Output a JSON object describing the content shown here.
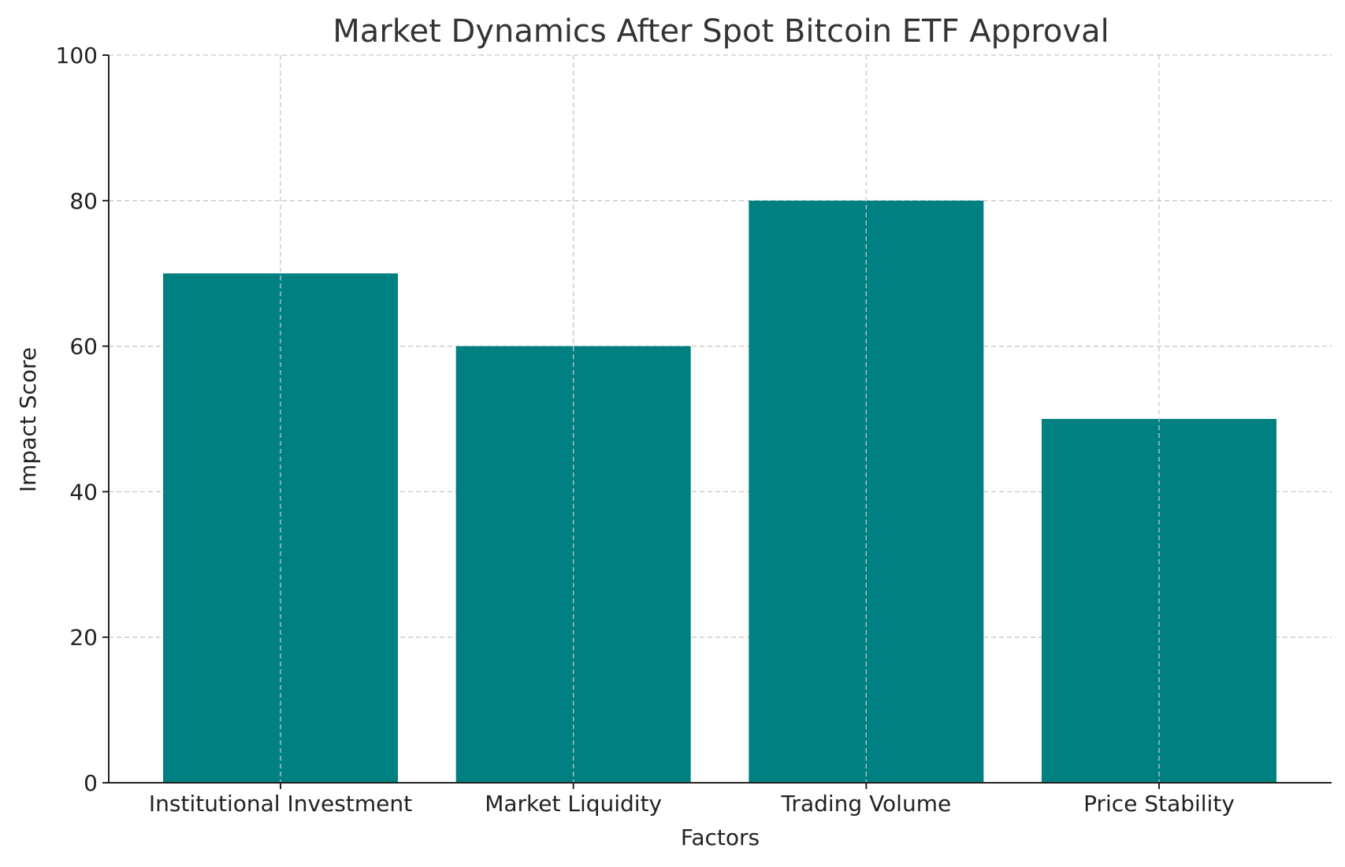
{
  "chart_data": {
    "type": "bar",
    "title": "Market Dynamics After Spot Bitcoin ETF Approval",
    "xlabel": "Factors",
    "ylabel": "Impact Score",
    "categories": [
      "Institutional Investment",
      "Market Liquidity",
      "Trading Volume",
      "Price Stability"
    ],
    "values": [
      70,
      60,
      80,
      50
    ],
    "ylim": [
      0,
      100
    ],
    "yticks": [
      0,
      20,
      40,
      60,
      80,
      100
    ],
    "ytick_labels": [
      "0",
      "20",
      "40",
      "60",
      "80",
      "100"
    ],
    "grid": true,
    "bar_color": "#008080"
  }
}
